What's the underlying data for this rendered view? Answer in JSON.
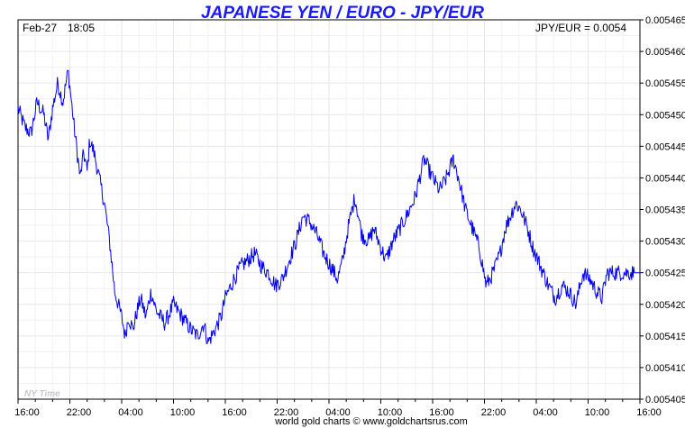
{
  "chart_data": {
    "type": "line",
    "title": "JAPANESE YEN / EURO - JPY/EUR",
    "date_label": "Feb-27",
    "time_label": "18:05",
    "current_label": "JPY/EUR = 0.0054",
    "watermark": "NY Time",
    "footer": "world gold charts © www.goldchartsrus.com",
    "line_color": "#0000ee",
    "x_ticks": [
      "16:00",
      "22:00",
      "04:00",
      "10:00",
      "16:00",
      "22:00",
      "04:00",
      "10:00",
      "16:00",
      "22:00",
      "04:00",
      "10:00",
      "16:00"
    ],
    "y_ticks": [
      "0.005405",
      "0.005410",
      "0.005415",
      "0.005420",
      "0.005425",
      "0.005430",
      "0.005435",
      "0.005440",
      "0.005445",
      "0.005450",
      "0.005455",
      "0.005460",
      "0.005465"
    ],
    "ylim": [
      0.005405,
      0.005465
    ],
    "xlim_hours": [
      0,
      72
    ],
    "grid": true,
    "series": [
      {
        "x_hours": [
          0,
          0.8,
          1.5,
          2.2,
          3.0,
          3.5,
          4.0,
          4.6,
          5.2,
          5.8,
          6.5,
          7.2,
          7.6,
          8.0,
          8.3,
          8.8,
          9.4,
          10.0,
          10.6,
          11.2,
          12.0,
          12.4,
          12.8,
          13.3,
          13.8,
          14.2,
          14.8,
          15.4,
          16.0,
          17.0,
          18.0,
          19.0,
          20.0,
          20.8,
          21.5,
          22.0,
          22.8,
          23.5,
          24.0,
          25.0,
          25.8,
          26.6,
          27.4,
          28.2,
          29.0,
          29.8,
          30.6,
          31.4,
          32.2,
          33.0,
          33.8,
          34.6,
          35.4,
          36.2,
          37.0,
          37.6,
          38.2,
          39.0,
          39.8,
          40.6,
          41.2,
          42.0,
          42.6,
          43.4,
          44.2,
          45.0,
          46.0,
          47.0,
          48.0,
          48.8,
          49.6,
          50.4,
          51.0,
          51.8,
          52.6,
          53.4,
          54.2,
          55.0,
          55.8,
          56.4,
          57.0,
          57.6,
          58.2,
          59.0,
          59.6,
          60.2,
          60.8,
          61.4,
          62.2,
          63.0,
          63.8,
          64.6,
          65.4,
          66.2,
          67.0,
          67.6,
          68.2,
          68.8,
          69.4,
          70.0,
          70.6,
          71.2,
          72.0
        ],
        "values": [
          0.005451,
          0.005448,
          0.005447,
          0.005452,
          0.00545,
          0.005446,
          0.005451,
          0.005455,
          0.005452,
          0.005457,
          0.005448,
          0.00544,
          0.005444,
          0.005441,
          0.005446,
          0.005444,
          0.00544,
          0.005436,
          0.00543,
          0.005422,
          0.005418,
          0.005415,
          0.005418,
          0.005416,
          0.005419,
          0.005421,
          0.005418,
          0.005422,
          0.005419,
          0.005417,
          0.00542,
          0.005418,
          0.005416,
          0.005415,
          0.005417,
          0.005414,
          0.005416,
          0.005418,
          0.005421,
          0.005424,
          0.005426,
          0.005427,
          0.005428,
          0.005426,
          0.005425,
          0.005423,
          0.005424,
          0.005427,
          0.00543,
          0.005434,
          0.005433,
          0.005431,
          0.005428,
          0.005426,
          0.005424,
          0.005427,
          0.005432,
          0.005437,
          0.005431,
          0.00543,
          0.005432,
          0.005429,
          0.005427,
          0.00543,
          0.005432,
          0.005434,
          0.005437,
          0.005443,
          0.00544,
          0.005438,
          0.00544,
          0.005443,
          0.00544,
          0.005435,
          0.005432,
          0.005429,
          0.005423,
          0.005425,
          0.005428,
          0.005432,
          0.005434,
          0.005436,
          0.005435,
          0.005432,
          0.005429,
          0.005427,
          0.005425,
          0.005423,
          0.005421,
          0.005423,
          0.005422,
          0.00542,
          0.005425,
          0.005424,
          0.005422,
          0.005421,
          0.005425,
          0.005425,
          0.005425,
          0.005425,
          0.005425,
          0.005425,
          0.005425
        ]
      }
    ]
  }
}
